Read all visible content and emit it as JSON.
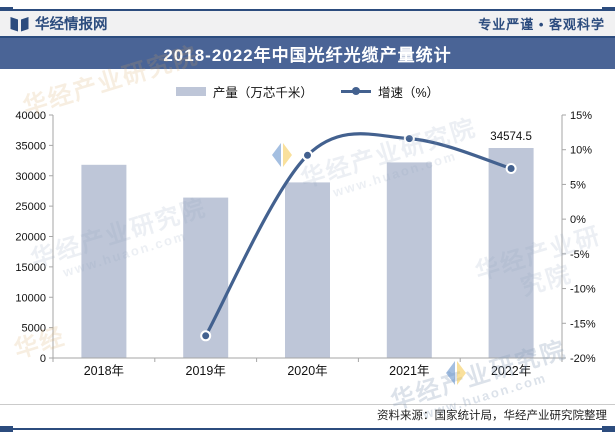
{
  "header": {
    "brand": "华经情报网",
    "logo_icon": "open-book-icon",
    "slogan": "专业严谨 • 客观科学"
  },
  "title": "2018-2022年中国光纤光缆产量统计",
  "legend": {
    "bar_label": "产量（万芯千米）",
    "line_label": "增速（%）"
  },
  "footer": {
    "source": "资料来源：国家统计局，华经产业研究院整理"
  },
  "watermark": {
    "text": "华经产业研究院",
    "url": "www.huaon.com",
    "short": "华经"
  },
  "colors": {
    "navy": "#2C4C7E",
    "title_bar_bg": "#4A6496",
    "bar_fill": "#BEC6D8",
    "line_stroke": "#43618F",
    "axis_stroke": "#A6A6A6",
    "header_bg": "#F1F1F2",
    "wm_blue": "#5B8BC9",
    "wm_yellow": "#F5C84C"
  },
  "chart_data": {
    "type": "combo",
    "title": "2018-2022年中国光纤光缆产量统计",
    "categories": [
      "2018年",
      "2019年",
      "2020年",
      "2021年",
      "2022年"
    ],
    "series": [
      {
        "name": "产量（万芯千米）",
        "type": "bar",
        "axis": "left",
        "values": [
          31800,
          26400,
          28900,
          32200,
          34574.5
        ]
      },
      {
        "name": "增速（%）",
        "type": "line",
        "axis": "right",
        "values": [
          null,
          -16.8,
          9.2,
          11.6,
          7.3
        ]
      }
    ],
    "point_labels": [
      {
        "series": 0,
        "index": 4,
        "text": "34574.5"
      }
    ],
    "left_axis": {
      "min": 0,
      "max": 40000,
      "step": 5000,
      "ticks": [
        "0",
        "5000",
        "10000",
        "15000",
        "20000",
        "25000",
        "30000",
        "35000",
        "40000"
      ]
    },
    "right_axis": {
      "min": -20,
      "max": 15,
      "step": 5,
      "suffix": "%",
      "ticks": [
        "-20%",
        "-15%",
        "-10%",
        "-5%",
        "0%",
        "5%",
        "10%",
        "15%"
      ]
    },
    "grid": false,
    "legend_position": "top"
  }
}
